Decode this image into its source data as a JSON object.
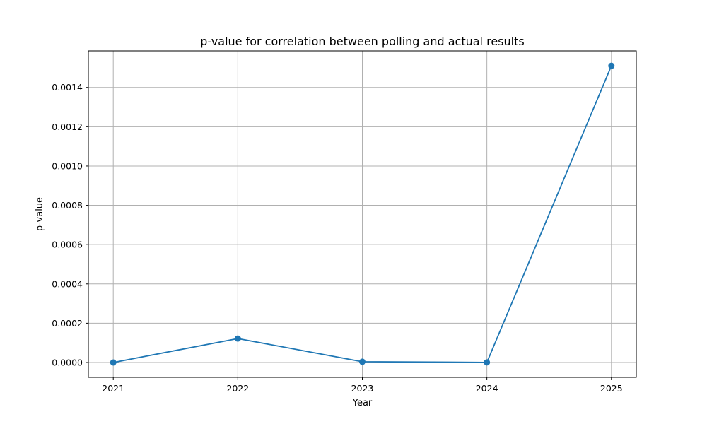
{
  "chart_data": {
    "type": "line",
    "title": "p-value for correlation between polling and actual results",
    "xlabel": "Year",
    "ylabel": "p-value",
    "x": [
      "2021",
      "2022",
      "2023",
      "2024",
      "2025"
    ],
    "series": [
      {
        "values": [
          2e-07,
          0.000122,
          4e-06,
          5e-07,
          0.00151
        ],
        "color": "#1f77b4",
        "marker": "circle"
      }
    ],
    "yticks": [
      0.0,
      0.0002,
      0.0004,
      0.0006,
      0.0008,
      0.001,
      0.0012,
      0.0014
    ],
    "ytick_labels": [
      "0.0000",
      "0.0002",
      "0.0004",
      "0.0006",
      "0.0008",
      "0.0010",
      "0.0012",
      "0.0014"
    ],
    "ylim": [
      -7.55e-05,
      0.001586
    ],
    "grid": true
  }
}
